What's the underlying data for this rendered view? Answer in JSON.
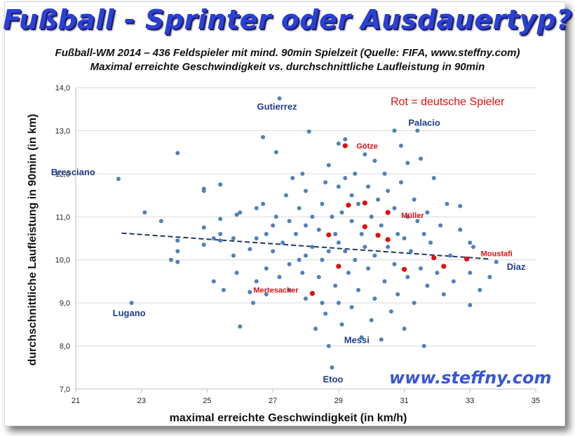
{
  "header": {
    "title": "Fußball - Sprinter oder Ausdauertyp?",
    "subtitle1": "Fußball-WM 2014  – 436 Feldspieler mit mind. 90min Spielzeit (Quelle: FIFA, www.steffny.com)",
    "subtitle2": "Maximal erreichte Geschwindigkeit vs.  durchschnittliche Laufleistung in 90min"
  },
  "watermark": "www.steffny.com",
  "colors": {
    "title": "#2b40d6",
    "dots": "#4f81bd",
    "german": "#e01010",
    "labels": "#1f3d8a",
    "trend": "#1f3864"
  },
  "chart_data": {
    "type": "scatter",
    "xlabel": "maximal erreichte Geschwindigkeit (in km/h)",
    "ylabel": "durchschnittliche Laufleistung in 90min (in km)",
    "xlim": [
      21,
      35
    ],
    "ylim": [
      7,
      14
    ],
    "xticks": [
      "21",
      "23",
      "25",
      "27",
      "29",
      "31",
      "33",
      "35"
    ],
    "yticks": [
      "7,0",
      "8,0",
      "9,0",
      "10,0",
      "11,0",
      "12,0",
      "13,0",
      "14,0"
    ],
    "grid": "horizontal",
    "legend_note": "Rot = deutsche Spieler",
    "trendline": {
      "style": "dashed",
      "from": [
        22.4,
        10.62
      ],
      "to": [
        33.6,
        10.02
      ]
    },
    "labeled_players": [
      {
        "name": "Gutierrez",
        "x": 27.2,
        "y": 13.75
      },
      {
        "name": "Palacio",
        "x": 31.4,
        "y": 13.0
      },
      {
        "name": "Bresciano",
        "x": 22.3,
        "y": 11.88
      },
      {
        "name": "Lugano",
        "x": 22.7,
        "y": 9.0
      },
      {
        "name": "Diaz",
        "x": 33.8,
        "y": 9.95
      },
      {
        "name": "Messi",
        "x": 30.3,
        "y": 8.15
      },
      {
        "name": "Etoo",
        "x": 28.8,
        "y": 7.5
      }
    ],
    "german_players": [
      {
        "name": "Götze",
        "x": 29.2,
        "y": 12.65
      },
      {
        "name": "Müller",
        "x": 30.5,
        "y": 11.1
      },
      {
        "name": "Moustafi",
        "x": 32.9,
        "y": 10.02
      },
      {
        "name": "Mertesacker",
        "x": 28.2,
        "y": 9.22
      },
      {
        "name": "",
        "x": 29.3,
        "y": 11.27
      },
      {
        "name": "",
        "x": 29.8,
        "y": 11.32
      },
      {
        "name": "",
        "x": 29.8,
        "y": 10.77
      },
      {
        "name": "",
        "x": 28.7,
        "y": 10.58
      },
      {
        "name": "",
        "x": 30.2,
        "y": 10.57
      },
      {
        "name": "",
        "x": 30.5,
        "y": 10.47
      },
      {
        "name": "",
        "x": 29.0,
        "y": 9.85
      },
      {
        "name": "",
        "x": 31.0,
        "y": 9.78
      },
      {
        "name": "",
        "x": 31.9,
        "y": 10.05
      },
      {
        "name": "",
        "x": 32.2,
        "y": 9.85
      }
    ],
    "points": [
      [
        22.3,
        11.88
      ],
      [
        22.7,
        9.0
      ],
      [
        23.1,
        11.1
      ],
      [
        23.6,
        10.9
      ],
      [
        23.9,
        10.0
      ],
      [
        24.1,
        12.48
      ],
      [
        24.1,
        10.45
      ],
      [
        24.1,
        10.2
      ],
      [
        24.1,
        9.95
      ],
      [
        24.9,
        11.65
      ],
      [
        24.9,
        11.6
      ],
      [
        24.9,
        10.75
      ],
      [
        24.9,
        10.35
      ],
      [
        25.2,
        10.5
      ],
      [
        25.2,
        9.5
      ],
      [
        25.4,
        11.75
      ],
      [
        25.4,
        10.95
      ],
      [
        25.4,
        10.6
      ],
      [
        25.4,
        10.45
      ],
      [
        25.5,
        9.3
      ],
      [
        25.8,
        10.5
      ],
      [
        25.8,
        10.1
      ],
      [
        25.9,
        11.05
      ],
      [
        25.9,
        9.7
      ],
      [
        26.0,
        11.1
      ],
      [
        26.0,
        8.45
      ],
      [
        26.3,
        10.25
      ],
      [
        26.3,
        9.25
      ],
      [
        26.4,
        9.0
      ],
      [
        26.5,
        11.2
      ],
      [
        26.5,
        10.5
      ],
      [
        26.5,
        9.5
      ],
      [
        26.7,
        11.3
      ],
      [
        26.7,
        12.85
      ],
      [
        26.8,
        10.6
      ],
      [
        26.8,
        9.8
      ],
      [
        26.8,
        9.2
      ],
      [
        27.0,
        10.8
      ],
      [
        27.0,
        10.2
      ],
      [
        27.1,
        12.5
      ],
      [
        27.1,
        11.0
      ],
      [
        27.2,
        13.75
      ],
      [
        27.2,
        9.6
      ],
      [
        27.3,
        10.4
      ],
      [
        27.4,
        11.5
      ],
      [
        27.5,
        10.9
      ],
      [
        27.5,
        9.9
      ],
      [
        27.5,
        9.3
      ],
      [
        27.6,
        11.9
      ],
      [
        27.7,
        10.6
      ],
      [
        27.8,
        11.2
      ],
      [
        27.8,
        10.0
      ],
      [
        27.9,
        12.0
      ],
      [
        27.9,
        9.7
      ],
      [
        28.0,
        11.6
      ],
      [
        28.0,
        10.8
      ],
      [
        28.0,
        10.1
      ],
      [
        28.0,
        9.1
      ],
      [
        28.1,
        12.98
      ],
      [
        28.2,
        11.0
      ],
      [
        28.2,
        10.3
      ],
      [
        28.3,
        8.4
      ],
      [
        28.4,
        10.7
      ],
      [
        28.4,
        9.6
      ],
      [
        28.5,
        11.3
      ],
      [
        28.5,
        10.0
      ],
      [
        28.5,
        9.0
      ],
      [
        28.6,
        11.8
      ],
      [
        28.6,
        8.75
      ],
      [
        28.7,
        12.2
      ],
      [
        28.7,
        10.2
      ],
      [
        28.7,
        8.0
      ],
      [
        28.8,
        11.0
      ],
      [
        28.8,
        7.5
      ],
      [
        28.9,
        10.6
      ],
      [
        28.9,
        9.4
      ],
      [
        29.0,
        12.7
      ],
      [
        29.0,
        11.7
      ],
      [
        29.0,
        10.4
      ],
      [
        29.0,
        9.0
      ],
      [
        29.1,
        11.1
      ],
      [
        29.1,
        8.5
      ],
      [
        29.2,
        12.8
      ],
      [
        29.2,
        11.9
      ],
      [
        29.2,
        10.2
      ],
      [
        29.3,
        9.7
      ],
      [
        29.4,
        11.5
      ],
      [
        29.4,
        10.9
      ],
      [
        29.4,
        8.9
      ],
      [
        29.5,
        12.0
      ],
      [
        29.5,
        10.0
      ],
      [
        29.6,
        11.3
      ],
      [
        29.6,
        9.3
      ],
      [
        29.7,
        10.6
      ],
      [
        29.7,
        8.2
      ],
      [
        29.8,
        12.45
      ],
      [
        29.8,
        10.3
      ],
      [
        29.9,
        11.7
      ],
      [
        29.9,
        9.8
      ],
      [
        30.0,
        11.0
      ],
      [
        30.0,
        8.6
      ],
      [
        30.1,
        12.3
      ],
      [
        30.1,
        10.1
      ],
      [
        30.1,
        9.1
      ],
      [
        30.2,
        11.4
      ],
      [
        30.3,
        10.8
      ],
      [
        30.3,
        8.15
      ],
      [
        30.4,
        12.0
      ],
      [
        30.4,
        9.5
      ],
      [
        30.5,
        11.6
      ],
      [
        30.5,
        10.3
      ],
      [
        30.6,
        8.8
      ],
      [
        30.7,
        13.0
      ],
      [
        30.7,
        11.2
      ],
      [
        30.7,
        9.9
      ],
      [
        30.8,
        10.6
      ],
      [
        30.8,
        9.2
      ],
      [
        30.9,
        12.65
      ],
      [
        30.9,
        11.8
      ],
      [
        31.0,
        10.5
      ],
      [
        31.0,
        8.4
      ],
      [
        31.1,
        12.25
      ],
      [
        31.1,
        11.0
      ],
      [
        31.1,
        9.6
      ],
      [
        31.2,
        10.2
      ],
      [
        31.3,
        11.4
      ],
      [
        31.3,
        9.0
      ],
      [
        31.4,
        13.0
      ],
      [
        31.4,
        10.9
      ],
      [
        31.5,
        9.8
      ],
      [
        31.5,
        12.35
      ],
      [
        31.6,
        10.6
      ],
      [
        31.6,
        8.0
      ],
      [
        31.7,
        11.1
      ],
      [
        31.7,
        9.4
      ],
      [
        31.8,
        10.4
      ],
      [
        31.9,
        11.9
      ],
      [
        32.0,
        9.7
      ],
      [
        32.1,
        10.8
      ],
      [
        32.2,
        9.2
      ],
      [
        32.3,
        11.3
      ],
      [
        32.4,
        10.1
      ],
      [
        32.5,
        9.5
      ],
      [
        32.7,
        11.25
      ],
      [
        32.7,
        10.7
      ],
      [
        33.0,
        10.4
      ],
      [
        33.0,
        9.7
      ],
      [
        33.0,
        8.95
      ],
      [
        33.1,
        10.3
      ],
      [
        33.3,
        9.3
      ],
      [
        33.6,
        9.6
      ],
      [
        33.8,
        9.95
      ]
    ]
  }
}
